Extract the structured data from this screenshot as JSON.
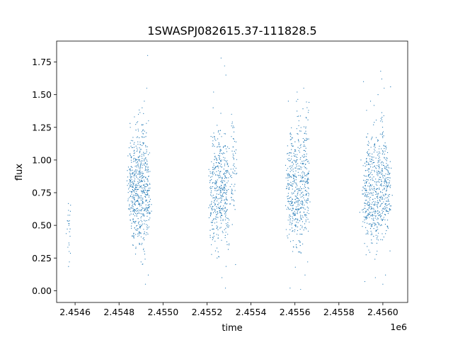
{
  "chart_data": {
    "type": "scatter",
    "title": "1SWASPJ082615.37-111828.5",
    "xlabel": "time",
    "ylabel": "flux",
    "x_offset_label": "1e6",
    "xlim": [
      2454516,
      2456113
    ],
    "ylim": [
      -0.09,
      1.91
    ],
    "x_ticks": [
      {
        "value": 2454600,
        "label": "2.4546"
      },
      {
        "value": 2454800,
        "label": "2.4548"
      },
      {
        "value": 2455000,
        "label": "2.4550"
      },
      {
        "value": 2455200,
        "label": "2.4552"
      },
      {
        "value": 2455400,
        "label": "2.4554"
      },
      {
        "value": 2455600,
        "label": "2.4556"
      },
      {
        "value": 2455800,
        "label": "2.4558"
      },
      {
        "value": 2456000,
        "label": "2.4560"
      }
    ],
    "y_ticks": [
      {
        "value": 0.0,
        "label": "0.00"
      },
      {
        "value": 0.25,
        "label": "0.25"
      },
      {
        "value": 0.5,
        "label": "0.50"
      },
      {
        "value": 0.75,
        "label": "0.75"
      },
      {
        "value": 1.0,
        "label": "1.00"
      },
      {
        "value": 1.25,
        "label": "1.25"
      },
      {
        "value": 1.5,
        "label": "1.50"
      },
      {
        "value": 1.75,
        "label": "1.75"
      }
    ],
    "grid": false,
    "marker_color": "#1f77b4",
    "series": [
      {
        "values": [
          [
            2454572,
            0.5
          ],
          [
            2454573,
            0.35
          ],
          [
            2454573,
            0.3
          ],
          [
            2454574,
            0.22
          ],
          [
            2454848,
            0.85
          ],
          [
            2454852,
            0.72
          ],
          [
            2454855,
            0.95
          ],
          [
            2454858,
            0.63
          ],
          [
            2454861,
            0.8
          ],
          [
            2454864,
            0.55
          ],
          [
            2454868,
            1.05
          ],
          [
            2454871,
            0.78
          ],
          [
            2454874,
            0.68
          ],
          [
            2454877,
            0.9
          ],
          [
            2454880,
            0.58
          ],
          [
            2454883,
            0.74
          ],
          [
            2454886,
            1.12
          ],
          [
            2454889,
            0.66
          ],
          [
            2454892,
            0.83
          ],
          [
            2454895,
            0.49
          ],
          [
            2454898,
            0.97
          ],
          [
            2454901,
            0.71
          ],
          [
            2454904,
            0.62
          ],
          [
            2454907,
            0.88
          ],
          [
            2454910,
            1.2
          ],
          [
            2454913,
            0.75
          ],
          [
            2454916,
            0.45
          ],
          [
            2454919,
            0.92
          ],
          [
            2454922,
            0.69
          ],
          [
            2454925,
            1.0
          ],
          [
            2454928,
            0.57
          ],
          [
            2454931,
            0.81
          ],
          [
            2454934,
            1.3
          ],
          [
            2454937,
            0.66
          ],
          [
            2454850,
            1.28
          ],
          [
            2454862,
            0.35
          ],
          [
            2454875,
            0.28
          ],
          [
            2454888,
            1.35
          ],
          [
            2454900,
            0.22
          ],
          [
            2454915,
            1.45
          ],
          [
            2454926,
            1.55
          ],
          [
            2454930,
            1.8
          ],
          [
            2454933,
            0.12
          ],
          [
            2454920,
            0.05
          ],
          [
            2454870,
            1.33
          ],
          [
            2454905,
            1.4
          ],
          [
            2455218,
            0.75
          ],
          [
            2455222,
            0.62
          ],
          [
            2455226,
            0.9
          ],
          [
            2455230,
            0.55
          ],
          [
            2455234,
            1.05
          ],
          [
            2455238,
            0.7
          ],
          [
            2455242,
            0.82
          ],
          [
            2455246,
            0.48
          ],
          [
            2455250,
            0.95
          ],
          [
            2455254,
            0.67
          ],
          [
            2455258,
            1.1
          ],
          [
            2455262,
            0.78
          ],
          [
            2455266,
            0.58
          ],
          [
            2455270,
            0.86
          ],
          [
            2455274,
            0.72
          ],
          [
            2455278,
            1.0
          ],
          [
            2455282,
            0.63
          ],
          [
            2455286,
            0.8
          ],
          [
            2455290,
            0.5
          ],
          [
            2455294,
            0.92
          ],
          [
            2455230,
            1.52
          ],
          [
            2455228,
            1.4
          ],
          [
            2455264,
            1.78
          ],
          [
            2455280,
            1.72
          ],
          [
            2455286,
            1.65
          ],
          [
            2455246,
            0.25
          ],
          [
            2455268,
            0.1
          ],
          [
            2455284,
            0.02
          ],
          [
            2455300,
            0.35
          ],
          [
            2455320,
            1.1
          ],
          [
            2455330,
            0.2
          ],
          [
            2455312,
            0.75
          ],
          [
            2455325,
            0.95
          ],
          [
            2455568,
            0.82
          ],
          [
            2455572,
            0.68
          ],
          [
            2455576,
            0.95
          ],
          [
            2455580,
            0.55
          ],
          [
            2455584,
            1.08
          ],
          [
            2455588,
            0.74
          ],
          [
            2455592,
            0.63
          ],
          [
            2455596,
            0.88
          ],
          [
            2455600,
            0.5
          ],
          [
            2455604,
            0.98
          ],
          [
            2455608,
            0.71
          ],
          [
            2455612,
            0.6
          ],
          [
            2455616,
            1.15
          ],
          [
            2455620,
            0.77
          ],
          [
            2455624,
            0.47
          ],
          [
            2455628,
            0.93
          ],
          [
            2455632,
            0.66
          ],
          [
            2455636,
            0.84
          ],
          [
            2455640,
            1.02
          ],
          [
            2455644,
            0.58
          ],
          [
            2455648,
            0.79
          ],
          [
            2455652,
            1.2
          ],
          [
            2455656,
            0.69
          ],
          [
            2455660,
            0.9
          ],
          [
            2455570,
            1.45
          ],
          [
            2455578,
            0.02
          ],
          [
            2455590,
            0.3
          ],
          [
            2455610,
            1.52
          ],
          [
            2455626,
            0.01
          ],
          [
            2455640,
            1.55
          ],
          [
            2455646,
            0.12
          ],
          [
            2455658,
            0.22
          ],
          [
            2455662,
            1.38
          ],
          [
            2455602,
            0.18
          ],
          [
            2455618,
            1.3
          ],
          [
            2455915,
            0.78
          ],
          [
            2455919,
            0.65
          ],
          [
            2455923,
            0.92
          ],
          [
            2455927,
            0.56
          ],
          [
            2455931,
            1.05
          ],
          [
            2455935,
            0.72
          ],
          [
            2455939,
            0.6
          ],
          [
            2455943,
            0.87
          ],
          [
            2455947,
            0.5
          ],
          [
            2455951,
            0.97
          ],
          [
            2455955,
            0.7
          ],
          [
            2455959,
            0.62
          ],
          [
            2455963,
            1.12
          ],
          [
            2455967,
            0.76
          ],
          [
            2455971,
            0.46
          ],
          [
            2455975,
            0.9
          ],
          [
            2455979,
            0.67
          ],
          [
            2455983,
            0.83
          ],
          [
            2455987,
            1.0
          ],
          [
            2455991,
            0.57
          ],
          [
            2455995,
            0.8
          ],
          [
            2455999,
            1.18
          ],
          [
            2456003,
            0.68
          ],
          [
            2456007,
            0.88
          ],
          [
            2456011,
            0.74
          ],
          [
            2456015,
            0.95
          ],
          [
            2456019,
            0.61
          ],
          [
            2456023,
            0.85
          ],
          [
            2456027,
            0.72
          ],
          [
            2455912,
            1.6
          ],
          [
            2455918,
            0.07
          ],
          [
            2455926,
            1.38
          ],
          [
            2455944,
            1.45
          ],
          [
            2455966,
            0.1
          ],
          [
            2455978,
            1.5
          ],
          [
            2455990,
            1.68
          ],
          [
            2455995,
            1.62
          ],
          [
            2456000,
            0.05
          ],
          [
            2456006,
            1.55
          ],
          [
            2456012,
            0.12
          ],
          [
            2456035,
            1.56
          ]
        ]
      }
    ]
  }
}
